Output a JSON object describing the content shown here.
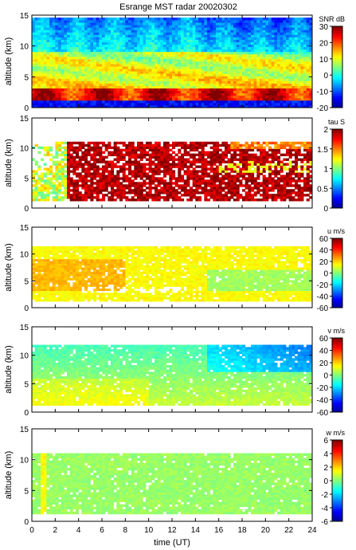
{
  "title": "Esrange MST radar 20020302",
  "chart_data": [
    {
      "type": "heatmap",
      "ylabel": "altitude (km)",
      "xlim": [
        0,
        24
      ],
      "ylim": [
        0,
        15
      ],
      "y_ticks": [
        0,
        5,
        10,
        15
      ],
      "colorbar_label": "SNR dB",
      "colorbar_range": [
        -20,
        30
      ],
      "colorbar_ticks": [
        -20,
        -10,
        0,
        10,
        20,
        30
      ],
      "description": "Strong echo (~20-30 dB) near 1-3 km, moderate 5-10 dB up to ~9 km, weak (-10 to 0 dB) above 10 km"
    },
    {
      "type": "heatmap",
      "ylabel": "altitude (km)",
      "xlim": [
        0,
        24
      ],
      "ylim": [
        0,
        15
      ],
      "y_ticks": [
        0,
        5,
        10,
        15
      ],
      "colorbar_label": "tau S",
      "colorbar_range": [
        0,
        2
      ],
      "colorbar_ticks": [
        0,
        0.5,
        1,
        1.5,
        2
      ],
      "description": "Sparse data 1-11 km; values mostly 1.5-2 s between 2 and 11 km"
    },
    {
      "type": "heatmap",
      "ylabel": "altitude (km)",
      "xlim": [
        0,
        24
      ],
      "ylim": [
        0,
        15
      ],
      "y_ticks": [
        0,
        5,
        10,
        15
      ],
      "colorbar_label": "u m/s",
      "colorbar_range": [
        -60,
        60
      ],
      "colorbar_ticks": [
        -60,
        -40,
        -20,
        0,
        20,
        40,
        60
      ],
      "description": "Zonal wind mostly 0 to 20 m/s, slightly negative after 16 UT near 5 km"
    },
    {
      "type": "heatmap",
      "ylabel": "altitude (km)",
      "xlim": [
        0,
        24
      ],
      "ylim": [
        0,
        15
      ],
      "y_ticks": [
        0,
        5,
        10,
        15
      ],
      "colorbar_label": "v m/s",
      "colorbar_range": [
        -60,
        60
      ],
      "colorbar_ticks": [
        -60,
        -40,
        -20,
        0,
        20,
        40,
        60
      ],
      "description": "Meridional wind mostly -20 to 10 m/s, strongest negative (~-40) near 8-11 km after 18 UT"
    },
    {
      "type": "heatmap",
      "ylabel": "altitude (km)",
      "xlabel": "time (UT)",
      "xlim": [
        0,
        24
      ],
      "ylim": [
        0,
        15
      ],
      "x_ticks": [
        0,
        2,
        4,
        6,
        8,
        10,
        12,
        14,
        16,
        18,
        20,
        22,
        24
      ],
      "y_ticks": [
        0,
        5,
        10,
        15
      ],
      "colorbar_label": "w m/s",
      "colorbar_range": [
        -6,
        6
      ],
      "colorbar_ticks": [
        -6,
        -4,
        -2,
        0,
        2,
        4,
        6
      ],
      "description": "Vertical wind near 0 m/s throughout"
    }
  ],
  "colors": {
    "colormap": [
      "#00008f",
      "#0000ff",
      "#0080ff",
      "#00ffff",
      "#80ff80",
      "#ffff00",
      "#ff8000",
      "#ff0000",
      "#800000"
    ]
  }
}
